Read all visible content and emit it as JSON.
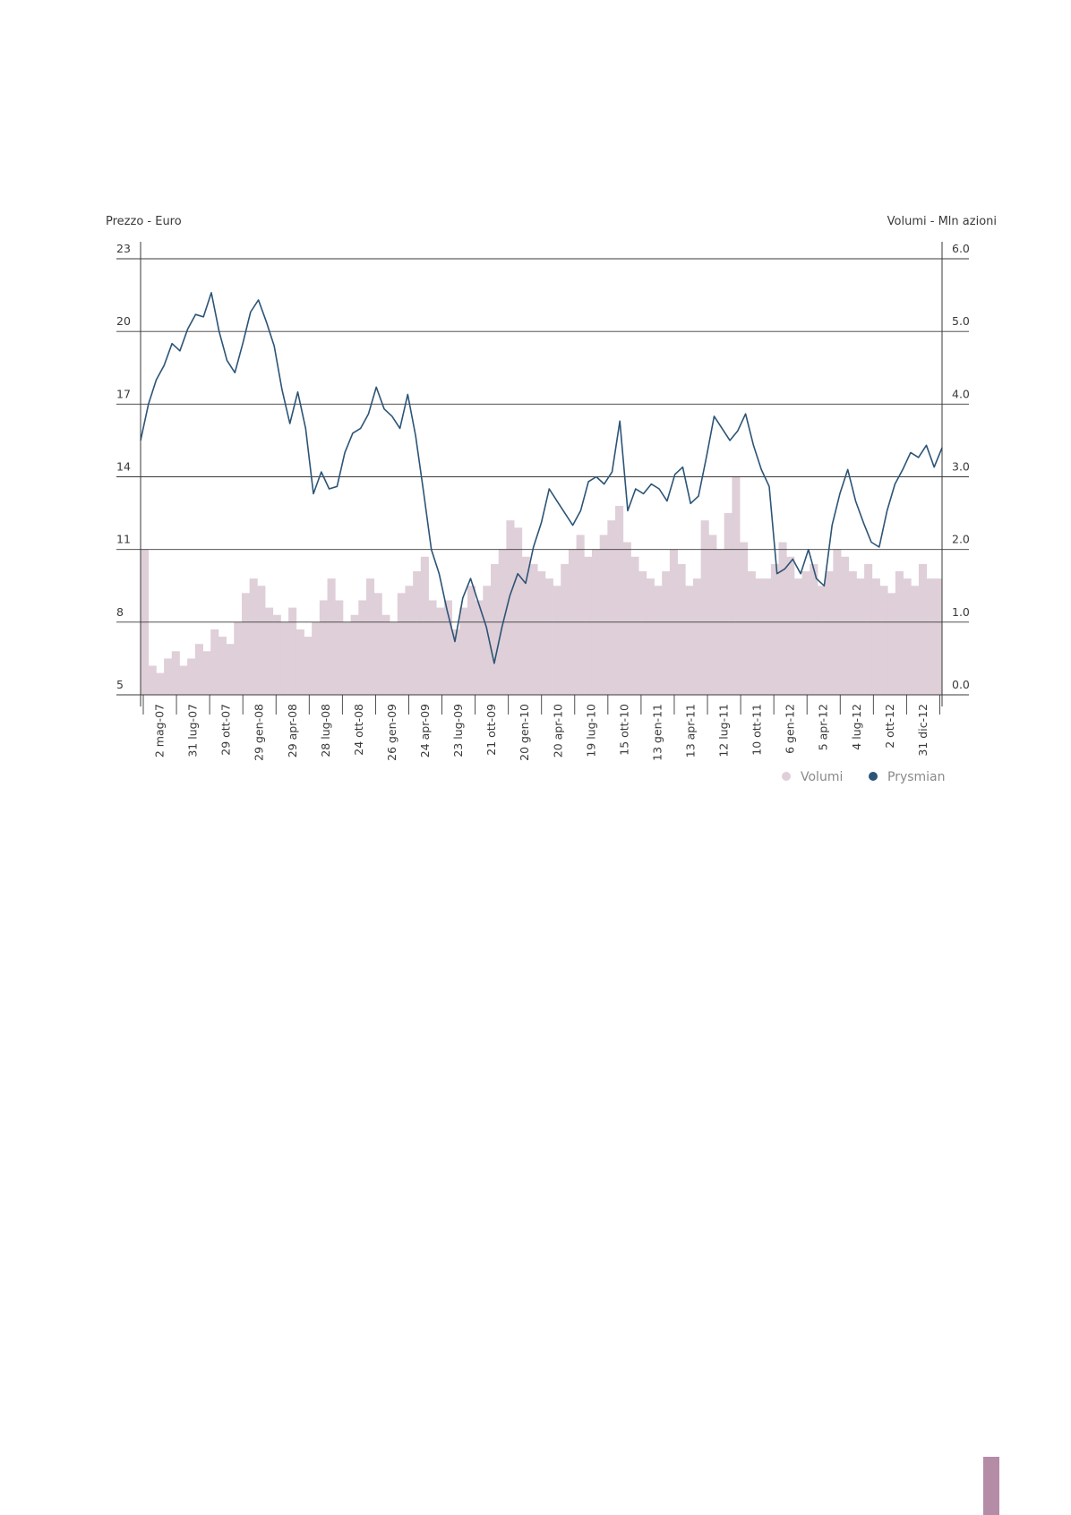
{
  "chart_data": {
    "type": "line",
    "left_axis_title": "Prezzo - Euro",
    "right_axis_title": "Volumi - Mln azioni",
    "left_ticks": [
      "23",
      "20",
      "17",
      "14",
      "11",
      "8",
      "5"
    ],
    "right_ticks": [
      "6.0",
      "5.0",
      "4.0",
      "3.0",
      "2.0",
      "1.0",
      "0.0"
    ],
    "ylim_price": [
      5,
      23
    ],
    "ylim_volume": [
      0,
      6
    ],
    "x_labels": [
      "2 mag-07",
      "31 lug-07",
      "29 ott-07",
      "29 gen-08",
      "29 apr-08",
      "28 lug-08",
      "24 ott-08",
      "26 gen-09",
      "24 apr-09",
      "23 lug-09",
      "21 ott-09",
      "20 gen-10",
      "20 apr-10",
      "19 lug-10",
      "15 ott-10",
      "13 gen-11",
      "13 apr-11",
      "12 lug-11",
      "10 ott-11",
      "6 gen-12",
      "5 apr-12",
      "4 lug-12",
      "2 ott-12",
      "31 dic-12"
    ],
    "grid": "horizontal",
    "legend_position": "bottom-right",
    "series": [
      {
        "name": "Prysmian",
        "color": "#2c5476",
        "kind": "line",
        "values": [
          15.5,
          17.0,
          18.0,
          18.6,
          19.5,
          19.2,
          20.1,
          20.7,
          20.6,
          21.6,
          20.0,
          18.8,
          18.3,
          19.5,
          20.8,
          21.3,
          20.4,
          19.4,
          17.6,
          16.2,
          17.5,
          16.0,
          13.3,
          14.2,
          13.5,
          13.6,
          15.0,
          15.8,
          16.0,
          16.6,
          17.7,
          16.8,
          16.5,
          16.0,
          17.4,
          15.7,
          13.4,
          11.0,
          10.0,
          8.5,
          7.2,
          9.0,
          9.8,
          8.8,
          7.8,
          6.3,
          7.8,
          9.1,
          10.0,
          9.6,
          11.1,
          12.1,
          13.5,
          13.0,
          12.5,
          12.0,
          12.6,
          13.8,
          14.0,
          13.7,
          14.2,
          16.3,
          12.6,
          13.5,
          13.3,
          13.7,
          13.5,
          13.0,
          14.1,
          14.4,
          12.9,
          13.2,
          14.8,
          16.5,
          16.0,
          15.5,
          15.9,
          16.6,
          15.3,
          14.3,
          13.6,
          10.0,
          10.2,
          10.6,
          10.0,
          11.0,
          9.8,
          9.5,
          12.0,
          13.3,
          14.3,
          13.0,
          12.1,
          11.3,
          11.1,
          12.6,
          13.7,
          14.3,
          15.0,
          14.8,
          15.3,
          14.4,
          15.2
        ]
      },
      {
        "name": "Volumi",
        "color": "#dfcfd8",
        "kind": "bar",
        "values": [
          2.0,
          0.4,
          0.3,
          0.5,
          0.6,
          0.4,
          0.5,
          0.7,
          0.6,
          0.9,
          0.8,
          0.7,
          1.0,
          1.4,
          1.6,
          1.5,
          1.2,
          1.1,
          1.0,
          1.2,
          0.9,
          0.8,
          1.0,
          1.3,
          1.6,
          1.3,
          1.0,
          1.1,
          1.3,
          1.6,
          1.4,
          1.1,
          1.0,
          1.4,
          1.5,
          1.7,
          1.9,
          1.3,
          1.2,
          1.3,
          0.9,
          1.2,
          1.5,
          1.3,
          1.5,
          1.8,
          2.0,
          2.4,
          2.3,
          1.9,
          1.8,
          1.7,
          1.6,
          1.5,
          1.8,
          2.0,
          2.2,
          1.9,
          2.0,
          2.2,
          2.4,
          2.6,
          2.1,
          1.9,
          1.7,
          1.6,
          1.5,
          1.7,
          2.0,
          1.8,
          1.5,
          1.6,
          2.4,
          2.2,
          2.0,
          2.5,
          3.0,
          2.1,
          1.7,
          1.6,
          1.6,
          1.8,
          2.1,
          1.9,
          1.6,
          1.7,
          1.8,
          1.5,
          1.7,
          2.0,
          1.9,
          1.7,
          1.6,
          1.8,
          1.6,
          1.5,
          1.4,
          1.7,
          1.6,
          1.5,
          1.8,
          1.6,
          1.6
        ]
      }
    ],
    "legend": [
      "Volumi",
      "Prysmian"
    ]
  },
  "colors": {
    "price_line": "#2c5476",
    "volume_fill": "#dfcfd8",
    "axis": "#3a3a3a",
    "page_tab": "#b48ca5"
  }
}
